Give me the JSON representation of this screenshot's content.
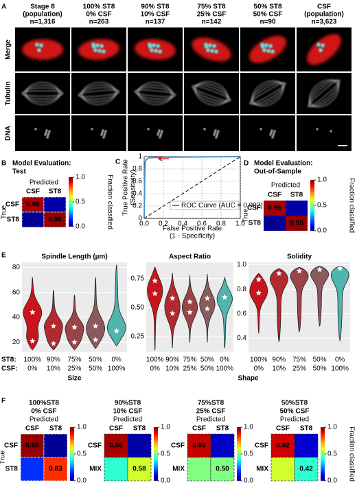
{
  "panel_a": {
    "letter": "A",
    "columns": [
      [
        "Stage 8",
        "(population)",
        "n=1,316"
      ],
      [
        "100% ST8",
        "0% CSF",
        "n=263"
      ],
      [
        "90% ST8",
        "10% CSF",
        "n=137"
      ],
      [
        "75% ST8",
        "25% CSF",
        "n=142"
      ],
      [
        "50% ST8",
        "50% CSF",
        "n=90"
      ],
      [
        "CSF",
        "(population)",
        "n=3,623"
      ]
    ],
    "rows": [
      "Merge",
      "Tubulin",
      "DNA"
    ]
  },
  "panel_b": {
    "letter": "B",
    "title": [
      "Model Evaluation:",
      "Test"
    ],
    "x_label": "Predicted",
    "y_label": "True",
    "categories": [
      "CSF",
      "ST8"
    ],
    "values": [
      [
        0.96,
        0.04
      ],
      [
        0.02,
        0.98
      ]
    ],
    "value_labels": [
      [
        "0.96",
        null
      ],
      [
        null,
        "0.98"
      ]
    ],
    "colorbar": {
      "ticks": [
        {
          "value": 0,
          "label": "0.0"
        },
        0.5,
        {
          "value": 1,
          "label": "1.0"
        }
      ],
      "label": "Fraction classified"
    }
  },
  "panel_c": {
    "letter": "C",
    "type": "line",
    "x_label": [
      "False Positive Rate",
      "(1 - Specificity)"
    ],
    "y_label": [
      "True Positive Rate",
      "(Sensitivity)"
    ],
    "xlim": [
      0,
      1
    ],
    "ylim": [
      0,
      1
    ],
    "xticks": [
      {
        "value": 0,
        "label": "0.0"
      },
      0.2,
      0.4,
      0.6,
      0.8,
      {
        "value": 1,
        "label": "1.0"
      }
    ],
    "yticks": [
      0,
      0.2,
      0.4,
      0.6,
      0.8,
      1
    ],
    "grid": true,
    "series": [
      {
        "name": "ROC Curve (AUC = 0.992)",
        "color": "#4a90c8",
        "x": [
          0,
          0.005,
          0.01,
          0.02,
          0.05,
          0.2,
          1
        ],
        "values": [
          0,
          0.6,
          0.9,
          0.95,
          0.98,
          0.99,
          1
        ]
      }
    ]
  },
  "panel_d": {
    "letter": "D",
    "title": [
      "Model Evaluation:",
      "Out-of-Sample"
    ],
    "x_label": "Predicted",
    "y_label": "True",
    "categories": [
      "CSF",
      "ST8"
    ],
    "values": [
      [
        0.96,
        0.04
      ],
      [
        0.02,
        0.98
      ]
    ],
    "value_labels": [
      [
        "0.96",
        null
      ],
      [
        null,
        "0.98"
      ]
    ],
    "colorbar": {
      "ticks": [
        {
          "value": 0,
          "label": "0.0"
        },
        0.5,
        {
          "value": 1,
          "label": "1.0"
        }
      ],
      "label": "Fraction classified"
    }
  },
  "panel_e": {
    "letter": "E",
    "type": "violin",
    "colors": [
      "#c8141c",
      "#b02a30",
      "#9a4448",
      "#8a5a5c",
      "#4fb5ad"
    ],
    "st8_header": "ST8:",
    "csf_header": "CSF:",
    "st8": [
      "100%",
      "90%",
      "75%",
      "50%",
      "0%"
    ],
    "csf": [
      "0%",
      "10%",
      "25%",
      "50%",
      "100%"
    ],
    "group_labels": [
      "Size",
      "Shape"
    ],
    "plots": [
      {
        "title": "Spindle Length (µm)",
        "ylim": [
          12.5,
          84
        ],
        "yticks": [
          20,
          40,
          60,
          80
        ],
        "violins": [
          {
            "min": 14,
            "max": 72,
            "modes": [
              44,
              21
            ]
          },
          {
            "min": 14,
            "max": 62,
            "modes": [
              33,
              19
            ]
          },
          {
            "min": 14,
            "max": 58,
            "modes": [
              32,
              20
            ]
          },
          {
            "min": 15,
            "max": 72,
            "modes": [
              33,
              22
            ]
          },
          {
            "min": 17,
            "max": 82,
            "modes": [
              29
            ]
          }
        ]
      },
      {
        "title": "Aspect Ratio",
        "ylim": [
          0.12,
          0.89
        ],
        "yticks": [
          0.25,
          {
            "value": 0.5,
            "label": "0.50"
          },
          0.75
        ],
        "violins": [
          {
            "min": 0.13,
            "max": 0.85,
            "modes": [
              0.73,
              0.62
            ]
          },
          {
            "min": 0.15,
            "max": 0.8,
            "modes": [
              0.58,
              0.45
            ]
          },
          {
            "min": 0.2,
            "max": 0.78,
            "modes": [
              0.55,
              0.46
            ]
          },
          {
            "min": 0.2,
            "max": 0.79,
            "modes": [
              0.58,
              0.49
            ]
          },
          {
            "min": 0.15,
            "max": 0.76,
            "modes": [
              0.59
            ]
          }
        ]
      },
      {
        "title": "Solidity",
        "ylim": [
          0.29,
          1.02
        ],
        "yticks": [
          0.4,
          0.6,
          0.8,
          {
            "value": 1,
            "label": "1.0"
          }
        ],
        "violins": [
          {
            "min": 0.44,
            "max": 0.93,
            "modes": [
              0.88,
              0.77
            ]
          },
          {
            "min": 0.37,
            "max": 0.97,
            "modes": [
              0.93
            ]
          },
          {
            "min": 0.45,
            "max": 0.98,
            "modes": [
              0.95
            ]
          },
          {
            "min": 0.5,
            "max": 0.99,
            "modes": [
              0.96
            ]
          },
          {
            "min": 0.38,
            "max": 0.99,
            "modes": [
              0.97
            ]
          }
        ]
      }
    ]
  },
  "panel_f": {
    "letter": "F",
    "y_label": "True",
    "matrices": [
      {
        "title": [
          "100%ST8",
          "0% CSF"
        ],
        "x_label": "Predicted",
        "categories": [
          "CSF",
          "ST8"
        ],
        "values": [
          [
            0.98,
            0.02
          ],
          [
            0.17,
            0.83
          ]
        ],
        "value_labels": [
          [
            "0.98",
            null
          ],
          [
            null,
            "0.83"
          ]
        ],
        "colorbar": {
          "ticks": [
            {
              "value": 0,
              "label": "0.0"
            },
            0.5,
            {
              "value": 1,
              "label": "1.0"
            }
          ]
        }
      },
      {
        "title": [
          "90%ST8",
          "10% CSF"
        ],
        "x_label": "Predicted",
        "categories": [
          "CSF",
          "ST8"
        ],
        "row_categories": [
          "CSF",
          "MIX"
        ],
        "values": [
          [
            0.96,
            0.04
          ],
          [
            0.42,
            0.58
          ]
        ],
        "value_labels": [
          [
            "0.96",
            null
          ],
          [
            null,
            "0.58"
          ]
        ],
        "colorbar": {
          "ticks": [
            {
              "value": 0,
              "label": "0.0"
            },
            0.5,
            {
              "value": 1,
              "label": "1.0"
            }
          ]
        }
      },
      {
        "title": [
          "75%ST8",
          "25% CSF"
        ],
        "x_label": "Predicted",
        "categories": [
          "CSF",
          "ST8"
        ],
        "row_categories": [
          "CSF",
          "MIX"
        ],
        "values": [
          [
            0.93,
            0.07
          ],
          [
            0.5,
            0.5
          ]
        ],
        "value_labels": [
          [
            "0.93",
            null
          ],
          [
            null,
            "0.50"
          ]
        ],
        "colorbar": {
          "ticks": [
            {
              "value": 0,
              "label": "0.0"
            },
            0.5,
            {
              "value": 1,
              "label": "1.0"
            }
          ]
        }
      },
      {
        "title": [
          "50%ST8",
          "50% CSF"
        ],
        "x_label": "Predicted",
        "categories": [
          "CSF",
          "ST8"
        ],
        "row_categories": [
          "CSF",
          "MIX"
        ],
        "values": [
          [
            0.92,
            0.08
          ],
          [
            0.58,
            0.42
          ]
        ],
        "value_labels": [
          [
            "0.92",
            null
          ],
          [
            null,
            "0.42"
          ]
        ],
        "colorbar": {
          "ticks": [
            {
              "value": 0,
              "label": "0.0"
            },
            0.5,
            {
              "value": 1,
              "label": "1.0"
            }
          ],
          "label": "Fraction classified"
        }
      }
    ]
  }
}
